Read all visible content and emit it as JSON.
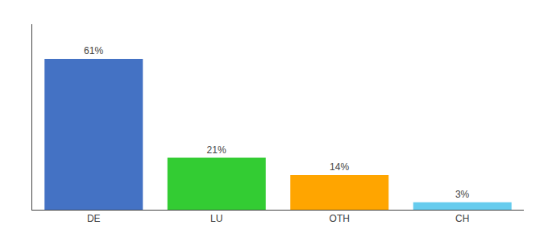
{
  "chart_data": {
    "type": "bar",
    "categories": [
      "DE",
      "LU",
      "OTH",
      "CH"
    ],
    "values": [
      61,
      21,
      14,
      3
    ],
    "value_labels": [
      "61%",
      "21%",
      "14%",
      "3%"
    ],
    "data_labels": true,
    "colors": [
      "#4472C4",
      "#33CC33",
      "#FFA500",
      "#66CCEE"
    ],
    "ylim": [
      0,
      75
    ],
    "grid": false,
    "tick_labels": "x"
  }
}
